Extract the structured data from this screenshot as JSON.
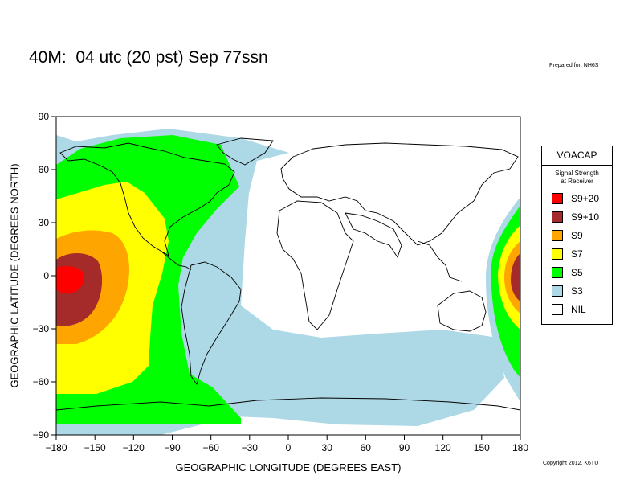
{
  "page": {
    "title": "40M:  04 utc (20 pst) Sep 77ssn",
    "prepared": "Prepared for: NH6S",
    "copyright": "Copyright 2012, K6TU"
  },
  "map": {
    "xlabel": "GEOGRAPHIC LONGITUDE (DEGREES EAST)",
    "ylabel": "GEOGRAPHIC LATITUDE (DEGREES NORTH)",
    "xlim": [
      -180,
      180
    ],
    "ylim": [
      -90,
      90
    ],
    "xticks": [
      "−180",
      "−150",
      "−120",
      "−90",
      "−60",
      "−30",
      "0",
      "30",
      "60",
      "90",
      "120",
      "150",
      "180"
    ],
    "yticks": [
      "90",
      "60",
      "30",
      "0",
      "−30",
      "−60",
      "−90"
    ]
  },
  "legend": {
    "title": "VOACAP",
    "subtitle_line1": "Signal Strength",
    "subtitle_line2": "at Receiver",
    "items": [
      {
        "label": "S9+20",
        "color": "#ff0000"
      },
      {
        "label": "S9+10",
        "color": "#a52a2a"
      },
      {
        "label": "S9",
        "color": "#ffa500"
      },
      {
        "label": "S7",
        "color": "#ffff00"
      },
      {
        "label": "S5",
        "color": "#00ff00"
      },
      {
        "label": "S3",
        "color": "#add8e6"
      },
      {
        "label": "NIL",
        "color": "#ffffff"
      }
    ]
  },
  "colors": {
    "s9p20": "#ff0000",
    "s9p10": "#a52a2a",
    "s9": "#ffa500",
    "s7": "#ffff00",
    "s5": "#00ff00",
    "s3": "#add8e6",
    "nil": "#ffffff"
  }
}
